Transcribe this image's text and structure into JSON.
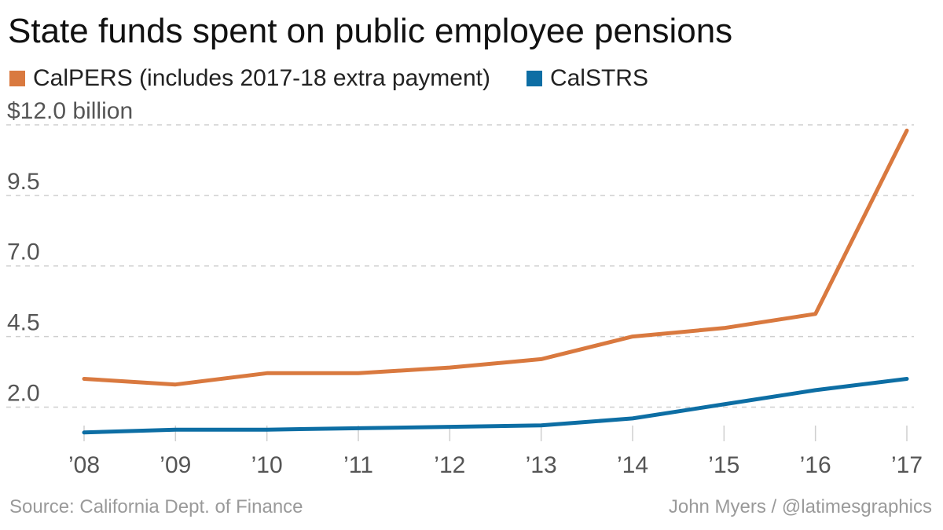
{
  "chart_data": {
    "type": "line",
    "title": "State funds spent on public employee pensions",
    "x": [
      "’08",
      "’09",
      "’10",
      "’11",
      "’12",
      "’13",
      "’14",
      "’15",
      "’16",
      "’17"
    ],
    "series": [
      {
        "name": "CalPERS (includes 2017-18 extra payment)",
        "color": "#d9793f",
        "values": [
          3.0,
          2.8,
          3.2,
          3.2,
          3.4,
          3.7,
          4.5,
          4.8,
          5.3,
          11.8
        ]
      },
      {
        "name": "CalSTRS",
        "color": "#0d6ea4",
        "values": [
          1.1,
          1.2,
          1.2,
          1.25,
          1.3,
          1.35,
          1.6,
          2.1,
          2.6,
          3.0
        ]
      }
    ],
    "y_ticks": [
      {
        "value": 12.0,
        "label": "$12.0 billion"
      },
      {
        "value": 9.5,
        "label": "9.5"
      },
      {
        "value": 7.0,
        "label": "7.0"
      },
      {
        "value": 4.5,
        "label": "4.5"
      },
      {
        "value": 2.0,
        "label": "2.0"
      }
    ],
    "ylim": [
      0.65,
      12.0
    ],
    "grid": true,
    "legend_position": "top-left"
  },
  "footer": {
    "source": "Source: California Dept. of Finance",
    "credit": "John Myers / @latimesgraphics"
  }
}
